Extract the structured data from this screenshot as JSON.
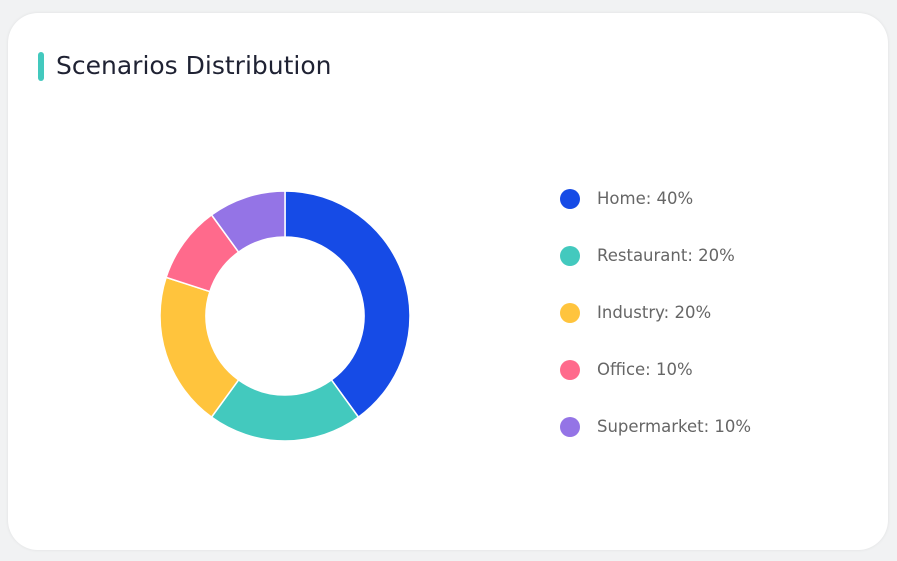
{
  "card": {
    "title": "Scenarios Distribution",
    "accent_color": "#43C9BE"
  },
  "chart_data": {
    "type": "pie",
    "donut": true,
    "categories": [
      "Home",
      "Restaurant",
      "Industry",
      "Office",
      "Supermarket"
    ],
    "values": [
      40,
      20,
      20,
      10,
      10
    ],
    "unit": "%",
    "colors": [
      "#164BE6",
      "#43C9BE",
      "#FFC43D",
      "#FF6A8C",
      "#9474E6"
    ],
    "legend_labels": [
      "Home: 40%",
      "Restaurant: 20%",
      "Industry: 20%",
      "Office: 10%",
      "Supermarket: 10%"
    ],
    "legend_position": "right"
  }
}
